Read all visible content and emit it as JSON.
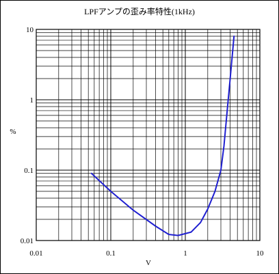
{
  "chart_data": {
    "type": "line",
    "title": "LPFアンプの歪み率特性(1kHz)",
    "xlabel": "V",
    "ylabel": "%",
    "x_scale": "log",
    "y_scale": "log",
    "xlim": [
      0.01,
      10
    ],
    "ylim": [
      0.01,
      10
    ],
    "x_ticks": [
      0.01,
      0.1,
      1,
      10
    ],
    "x_tick_labels": [
      "0.01",
      "0.1",
      "1",
      "10"
    ],
    "y_ticks": [
      0.01,
      0.1,
      1,
      10
    ],
    "y_tick_labels": [
      "0.01",
      "0.1",
      "1",
      "10"
    ],
    "grid": true,
    "legend": "none",
    "series": [
      {
        "color": "#1f1fd0",
        "x": [
          0.055,
          0.1,
          0.2,
          0.4,
          0.6,
          0.8,
          1.2,
          1.6,
          2.0,
          2.5,
          3.0,
          3.3,
          3.6,
          4.0,
          4.5
        ],
        "y": [
          0.09,
          0.05,
          0.027,
          0.016,
          0.0122,
          0.0118,
          0.0132,
          0.018,
          0.028,
          0.05,
          0.1,
          0.22,
          0.6,
          2.0,
          8.0
        ]
      }
    ]
  }
}
